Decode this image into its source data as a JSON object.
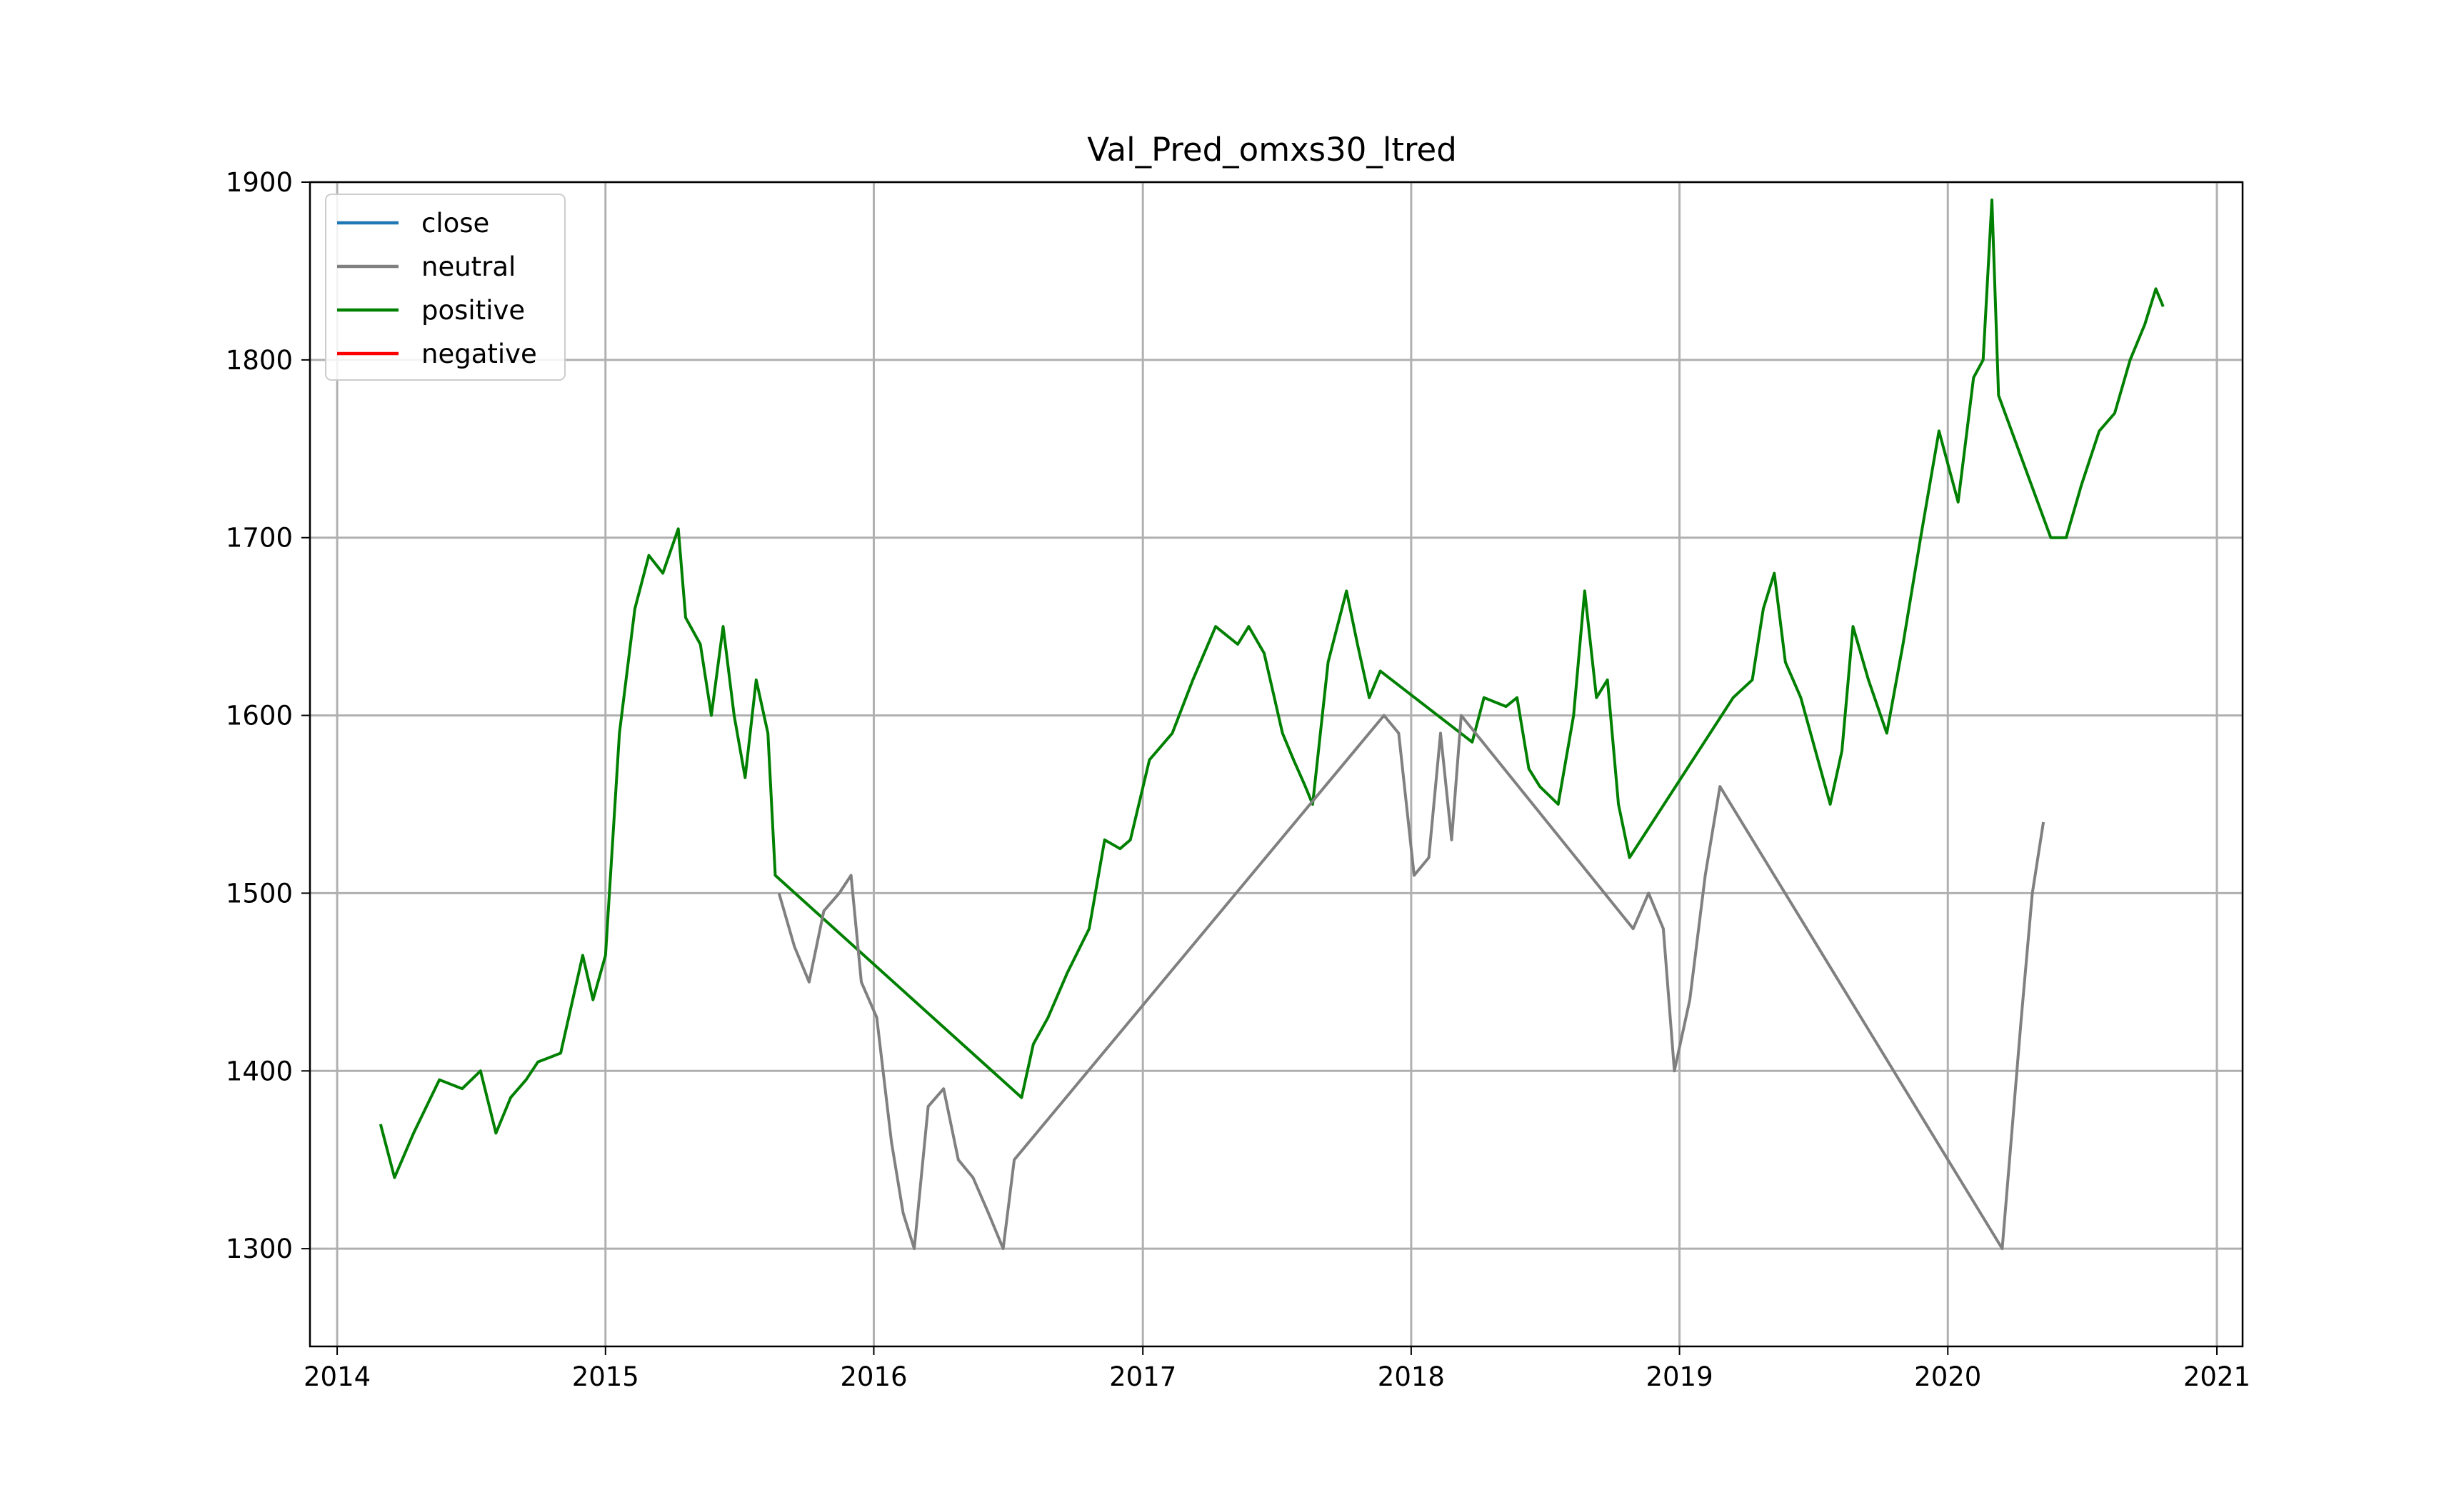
{
  "chart_data": {
    "type": "line",
    "title": "Val_Pred_omxs30_ltred",
    "xlabel": "",
    "ylabel": "",
    "x_ticks": [
      "2014",
      "2015",
      "2016",
      "2017",
      "2018",
      "2019",
      "2020",
      "2021"
    ],
    "y_ticks": [
      "1300",
      "1400",
      "1500",
      "1600",
      "1700",
      "1800",
      "1900"
    ],
    "xlim": [
      "2013-11-25",
      "2021-02-05"
    ],
    "ylim": [
      1245,
      1900
    ],
    "grid": true,
    "legend_position": "upper left",
    "legend": [
      "close",
      "neutral",
      "positive",
      "negative"
    ],
    "colors": {
      "close": "#1f77b4",
      "neutral": "#808080",
      "positive": "#008000",
      "negative": "#ff0000",
      "grid": "#b0b0b0"
    },
    "series": [
      {
        "name": "positive",
        "color": "#008000",
        "x": [
          "2014-03-01",
          "2014-03-20",
          "2014-04-15",
          "2014-05-20",
          "2014-06-20",
          "2014-07-15",
          "2014-08-05",
          "2014-08-25",
          "2014-09-15",
          "2014-10-01",
          "2014-11-01",
          "2014-12-01",
          "2014-12-15",
          "2015-01-01",
          "2015-01-20",
          "2015-02-10",
          "2015-03-01",
          "2015-03-20",
          "2015-04-10",
          "2015-04-20",
          "2015-05-10",
          "2015-05-25",
          "2015-06-10",
          "2015-06-25",
          "2015-07-10",
          "2015-07-25",
          "2015-08-10",
          "2015-08-20",
          "2016-07-20",
          "2016-08-05",
          "2016-08-25",
          "2016-09-20",
          "2016-10-20",
          "2016-11-10",
          "2016-12-01",
          "2016-12-15",
          "2017-01-10",
          "2017-02-10",
          "2017-03-10",
          "2017-04-10",
          "2017-05-10",
          "2017-05-25",
          "2017-06-15",
          "2017-07-10",
          "2017-07-25",
          "2017-08-10",
          "2017-08-20",
          "2017-09-10",
          "2017-10-05",
          "2017-10-20",
          "2017-11-05",
          "2017-11-20",
          "2018-03-25",
          "2018-04-10",
          "2018-05-10",
          "2018-05-25",
          "2018-06-10",
          "2018-06-25",
          "2018-07-20",
          "2018-08-10",
          "2018-08-25",
          "2018-09-10",
          "2018-09-25",
          "2018-10-10",
          "2018-10-25",
          "2019-03-15",
          "2019-04-10",
          "2019-04-25",
          "2019-05-10",
          "2019-05-25",
          "2019-06-15",
          "2019-07-05",
          "2019-07-25",
          "2019-08-10",
          "2019-08-25",
          "2019-09-15",
          "2019-10-10",
          "2019-11-01",
          "2019-11-25",
          "2019-12-20",
          "2020-01-15",
          "2020-02-05",
          "2020-02-18",
          "2020-03-01",
          "2020-03-10",
          "2020-05-20",
          "2020-06-10",
          "2020-07-01",
          "2020-07-25",
          "2020-08-15",
          "2020-09-05",
          "2020-09-25",
          "2020-10-10",
          "2020-10-20"
        ],
        "values": [
          1370,
          1340,
          1365,
          1395,
          1390,
          1400,
          1365,
          1385,
          1395,
          1405,
          1410,
          1465,
          1440,
          1465,
          1590,
          1660,
          1690,
          1680,
          1705,
          1655,
          1640,
          1600,
          1650,
          1600,
          1565,
          1620,
          1590,
          1510,
          1385,
          1415,
          1430,
          1455,
          1480,
          1530,
          1525,
          1530,
          1575,
          1590,
          1620,
          1650,
          1640,
          1650,
          1635,
          1590,
          1575,
          1560,
          1550,
          1630,
          1670,
          1640,
          1610,
          1625,
          1585,
          1610,
          1605,
          1610,
          1570,
          1560,
          1550,
          1600,
          1670,
          1610,
          1620,
          1550,
          1520,
          1610,
          1620,
          1660,
          1680,
          1630,
          1610,
          1580,
          1550,
          1580,
          1650,
          1620,
          1590,
          1640,
          1700,
          1760,
          1720,
          1790,
          1800,
          1890,
          1780,
          1700,
          1700,
          1730,
          1760,
          1770,
          1800,
          1820,
          1840,
          1830
        ]
      },
      {
        "name": "neutral",
        "color": "#808080",
        "x": [
          "2015-08-25",
          "2015-09-15",
          "2015-10-05",
          "2015-10-25",
          "2015-11-15",
          "2015-12-01",
          "2015-12-15",
          "2016-01-05",
          "2016-01-25",
          "2016-02-10",
          "2016-02-25",
          "2016-03-15",
          "2016-04-05",
          "2016-04-25",
          "2016-05-15",
          "2016-06-05",
          "2016-06-25",
          "2016-07-10",
          "2017-11-25",
          "2017-12-15",
          "2018-01-05",
          "2018-01-25",
          "2018-02-10",
          "2018-02-25",
          "2018-03-10",
          "2018-10-30",
          "2018-11-20",
          "2018-12-10",
          "2018-12-25",
          "2019-01-15",
          "2019-02-05",
          "2019-02-25",
          "2020-03-15",
          "2020-03-25",
          "2020-04-10",
          "2020-04-25",
          "2020-05-10"
        ],
        "values": [
          1500,
          1470,
          1450,
          1490,
          1500,
          1510,
          1450,
          1430,
          1360,
          1320,
          1300,
          1380,
          1390,
          1350,
          1340,
          1320,
          1300,
          1350,
          1600,
          1590,
          1510,
          1520,
          1590,
          1530,
          1600,
          1480,
          1500,
          1480,
          1400,
          1440,
          1510,
          1560,
          1300,
          1350,
          1430,
          1500,
          1540
        ]
      },
      {
        "name": "close",
        "color": "#1f77b4",
        "x": [],
        "values": []
      },
      {
        "name": "negative",
        "color": "#ff0000",
        "x": [],
        "values": []
      }
    ]
  }
}
